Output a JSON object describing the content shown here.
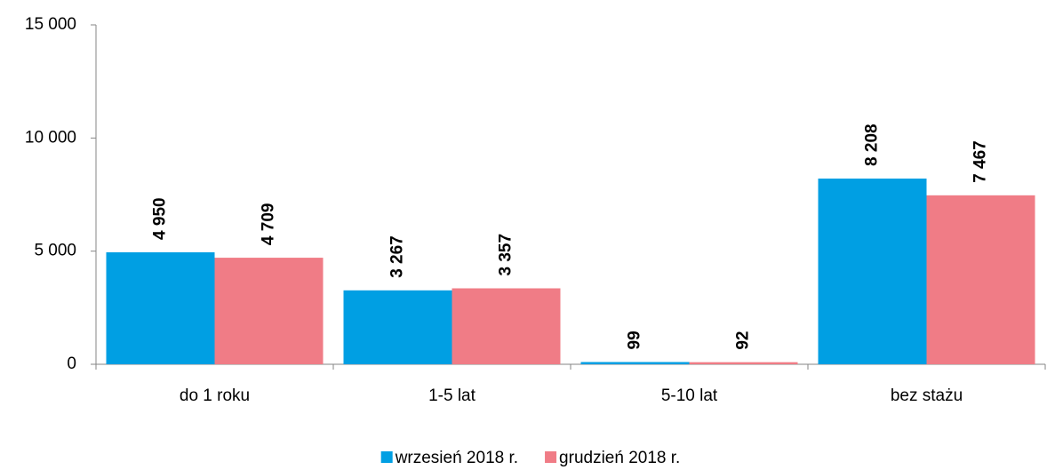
{
  "chart_data": {
    "type": "bar",
    "categories": [
      "do 1 roku",
      "1-5 lat",
      "5-10 lat",
      "bez stażu"
    ],
    "series": [
      {
        "name": "wrzesień 2018 r.",
        "color": "#009fe3",
        "values": [
          4950,
          3267,
          99,
          8208
        ],
        "value_labels": [
          "4 950",
          "3 267",
          "99",
          "8 208"
        ]
      },
      {
        "name": "grudzień 2018 r.",
        "color": "#f07c86",
        "values": [
          4709,
          3357,
          92,
          7467
        ],
        "value_labels": [
          "4 709",
          "3 357",
          "92",
          "7 467"
        ]
      }
    ],
    "ylim": [
      0,
      15000
    ],
    "yticks": [
      {
        "value": 0,
        "label": "0"
      },
      {
        "value": 5000,
        "label": "5 000"
      },
      {
        "value": 10000,
        "label": "10 000"
      },
      {
        "value": 15000,
        "label": "15 000"
      }
    ],
    "legend": "bottom"
  }
}
